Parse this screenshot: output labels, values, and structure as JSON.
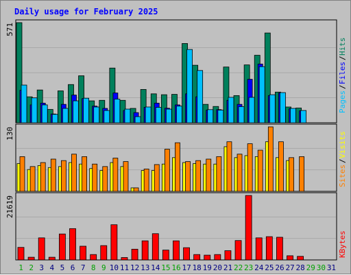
{
  "title": "Daily usage for February 2025",
  "colors": {
    "background": "#c0c0c0",
    "panel": "#c0c0c0",
    "grid": "#a8a8a8",
    "hits": "#00805c",
    "files": "#0000ff",
    "pages": "#00c0ff",
    "visits": "#ffff00",
    "sites": "#ff8000",
    "kbytes": "#ff0000",
    "title": "#0000ff",
    "day_normal": "#000080",
    "day_weekend": "#00a000"
  },
  "chart_data": [
    {
      "type": "bar",
      "title": "Daily usage for February 2025",
      "ylabel_max": "571",
      "ylim": [
        0,
        571
      ],
      "grid": true,
      "categories": [
        "1",
        "2",
        "3",
        "4",
        "5",
        "6",
        "7",
        "8",
        "9",
        "10",
        "11",
        "12",
        "13",
        "14",
        "15",
        "16",
        "17",
        "18",
        "19",
        "20",
        "21",
        "22",
        "23",
        "24",
        "25",
        "26",
        "27",
        "28",
        "29",
        "30",
        "31"
      ],
      "series": [
        {
          "name": "Hits",
          "values": [
            571,
            148,
            187,
            76,
            182,
            218,
            268,
            125,
            128,
            312,
            128,
            82,
            190,
            165,
            160,
            162,
            452,
            328,
            105,
            93,
            318,
            155,
            330,
            385,
            512,
            175,
            90,
            84,
            0,
            0,
            0
          ]
        },
        {
          "name": "Files",
          "values": [
            185,
            102,
            112,
            50,
            105,
            158,
            138,
            95,
            82,
            170,
            70,
            58,
            88,
            112,
            83,
            102,
            165,
            148,
            72,
            75,
            128,
            105,
            248,
            335,
            155,
            170,
            80,
            68,
            0,
            0,
            0
          ]
        },
        {
          "name": "Pages",
          "values": [
            215,
            142,
            102,
            48,
            82,
            125,
            140,
            90,
            70,
            135,
            78,
            35,
            90,
            88,
            78,
            95,
            418,
            298,
            75,
            72,
            145,
            92,
            145,
            320,
            160,
            172,
            82,
            70,
            0,
            0,
            0
          ]
        }
      ],
      "legend": [
        "Pages",
        "Files",
        "Hits"
      ]
    },
    {
      "type": "bar",
      "ylabel_max": "130",
      "ylim": [
        0,
        130
      ],
      "grid": true,
      "series": [
        {
          "name": "Visits",
          "values": [
            56,
            44,
            52,
            48,
            50,
            58,
            55,
            46,
            42,
            58,
            50,
            7,
            42,
            42,
            55,
            68,
            58,
            56,
            55,
            55,
            90,
            68,
            72,
            70,
            100,
            68,
            62,
            0,
            0,
            0,
            0
          ]
        },
        {
          "name": "Sites",
          "values": [
            70,
            50,
            58,
            65,
            62,
            75,
            70,
            55,
            50,
            67,
            60,
            7,
            45,
            54,
            85,
            98,
            60,
            62,
            65,
            70,
            100,
            75,
            96,
            83,
            130,
            100,
            68,
            70,
            0,
            0,
            0
          ]
        }
      ],
      "legend": [
        "Sites",
        "Visits"
      ]
    },
    {
      "type": "bar",
      "ylabel_max": "21619",
      "ylim": [
        0,
        21619
      ],
      "grid": true,
      "series": [
        {
          "name": "KBytes",
          "values": [
            4200,
            900,
            7400,
            900,
            8700,
            10500,
            4600,
            1800,
            4800,
            11800,
            800,
            3600,
            6400,
            8800,
            3300,
            6400,
            4100,
            1800,
            1600,
            1800,
            3100,
            6500,
            21619,
            7400,
            7800,
            7600,
            1400,
            1200,
            0,
            0,
            0
          ]
        }
      ],
      "legend": [
        "KBytes"
      ]
    }
  ],
  "days": [
    {
      "label": "1",
      "weekend": true
    },
    {
      "label": "2",
      "weekend": true
    },
    {
      "label": "3",
      "weekend": false
    },
    {
      "label": "4",
      "weekend": false
    },
    {
      "label": "5",
      "weekend": false
    },
    {
      "label": "6",
      "weekend": false
    },
    {
      "label": "7",
      "weekend": false
    },
    {
      "label": "8",
      "weekend": true
    },
    {
      "label": "9",
      "weekend": true
    },
    {
      "label": "10",
      "weekend": false
    },
    {
      "label": "11",
      "weekend": false
    },
    {
      "label": "12",
      "weekend": false
    },
    {
      "label": "13",
      "weekend": false
    },
    {
      "label": "14",
      "weekend": false
    },
    {
      "label": "15",
      "weekend": true
    },
    {
      "label": "16",
      "weekend": true
    },
    {
      "label": "17",
      "weekend": false
    },
    {
      "label": "18",
      "weekend": false
    },
    {
      "label": "19",
      "weekend": false
    },
    {
      "label": "20",
      "weekend": false
    },
    {
      "label": "21",
      "weekend": false
    },
    {
      "label": "22",
      "weekend": true
    },
    {
      "label": "23",
      "weekend": true
    },
    {
      "label": "24",
      "weekend": false
    },
    {
      "label": "25",
      "weekend": false
    },
    {
      "label": "26",
      "weekend": false
    },
    {
      "label": "27",
      "weekend": false
    },
    {
      "label": "28",
      "weekend": false
    },
    {
      "label": "29",
      "weekend": true
    },
    {
      "label": "30",
      "weekend": true
    },
    {
      "label": "31",
      "weekend": false
    }
  ]
}
